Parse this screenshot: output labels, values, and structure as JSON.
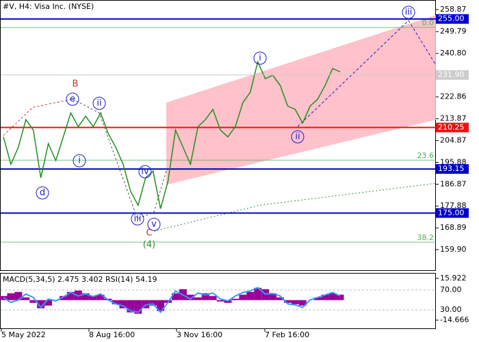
{
  "chart_data": {
    "type": "line",
    "title": "#V, H4:  Visa Inc. (NYSE)",
    "x_labels": [
      "5 May 2022",
      "8 Aug 16:00",
      "3 Nov 16:00",
      "7 Feb 16:00"
    ],
    "series": [
      {
        "name": "V",
        "color": "#1f8f1f",
        "values": [
          206.4,
          195.1,
          202.2,
          213.5,
          209.2,
          189.5,
          203.6,
          196.6,
          206.4,
          216.3,
          210.6,
          214.9,
          210.6,
          216.3,
          207.8,
          202.2,
          195.1,
          183.9,
          178.2,
          189.5,
          192.3,
          176.8,
          188.1,
          209.2,
          202.2,
          195.1,
          210.6,
          213.5,
          217.7,
          209.2,
          206.4,
          210.6,
          220.5,
          224.8,
          237.4,
          230.4,
          231.8,
          227.6,
          219.1,
          217.7,
          212.1,
          219.1,
          221.9,
          227.6,
          234.6,
          233.2
        ]
      }
    ],
    "ylim": [
      159.9,
      258.87
    ],
    "yticks": [
      258.87,
      249.79,
      {
        "value": 240.8,
        "label": "240.80"
      },
      222.86,
      213.87,
      204.87,
      195.88,
      186.87,
      177.88,
      168.89,
      {
        "value": 159.9,
        "label": "159.90"
      }
    ],
    "current_price": {
      "value": 231.9,
      "label": "231.90"
    },
    "levels": [
      {
        "value": 255,
        "label": "255.00",
        "color": "#0000cc"
      },
      {
        "value": 210.25,
        "label": "210.25",
        "color": "#ee1111"
      },
      {
        "value": 193.15,
        "label": "193.15",
        "color": "#0000cc"
      },
      {
        "value": 175,
        "label": "175.00",
        "color": "#0000cc"
      }
    ],
    "fibonacci": [
      {
        "label": "0.0",
        "price": 251.5
      },
      {
        "label": "23.6",
        "price": 196.8
      },
      {
        "label": "38.2",
        "price": 163.0
      }
    ],
    "waves": [
      {
        "label": "B",
        "color": "#c0392b"
      },
      {
        "label": "e",
        "color": "#1a1acc"
      },
      {
        "label": "ii",
        "color": "#1a1acc"
      },
      {
        "label": "i",
        "color": "#1a1acc"
      },
      {
        "label": "d",
        "color": "#1a1acc"
      },
      {
        "label": "iv",
        "color": "#1a1acc"
      },
      {
        "label": "iii",
        "color": "#1a1acc"
      },
      {
        "label": "v",
        "color": "#1a1acc"
      },
      {
        "label": "C",
        "color": "#c0392b"
      },
      {
        "label": "(4)",
        "color": "#2e8b2e"
      },
      {
        "label": "i",
        "color": "#1a1acc"
      },
      {
        "label": "ii",
        "color": "#1a1acc"
      },
      {
        "label": "iii",
        "color": "#1a1acc"
      }
    ],
    "indicator": {
      "label": "MACD(5,34,5) 2.475 3.402 RSI(14) 54.19",
      "macd": {
        "name": "MACD",
        "color": "#990099",
        "values": [
          3,
          5,
          6,
          2,
          -2,
          -6,
          -4,
          0,
          3,
          6,
          7,
          5,
          3,
          4,
          1,
          -3,
          -6,
          -9,
          -10,
          -6,
          -4,
          -8,
          -2,
          5,
          8,
          4,
          2,
          5,
          3,
          -1,
          -2,
          1,
          4,
          6,
          9,
          8,
          5,
          2,
          -2,
          -3,
          -4,
          0,
          2,
          4,
          5,
          4
        ]
      },
      "macd_lim": [
        -14.666,
        15.922
      ],
      "macd_ticks": [
        15.922,
        -14.666
      ],
      "rsi": {
        "name": "RSI",
        "color": "#3399ff",
        "values": [
          55,
          45,
          50,
          62,
          55,
          35,
          52,
          48,
          56,
          65,
          58,
          62,
          57,
          62,
          50,
          42,
          38,
          28,
          25,
          40,
          42,
          25,
          45,
          68,
          60,
          52,
          64,
          60,
          64,
          52,
          48,
          58,
          65,
          68,
          75,
          62,
          63,
          58,
          42,
          40,
          35,
          50,
          55,
          60,
          65,
          58
        ]
      },
      "rsi_ticks": [
        {
          "value": 70,
          "label": "70.00"
        },
        {
          "value": 30,
          "label": "30.00"
        }
      ]
    }
  }
}
